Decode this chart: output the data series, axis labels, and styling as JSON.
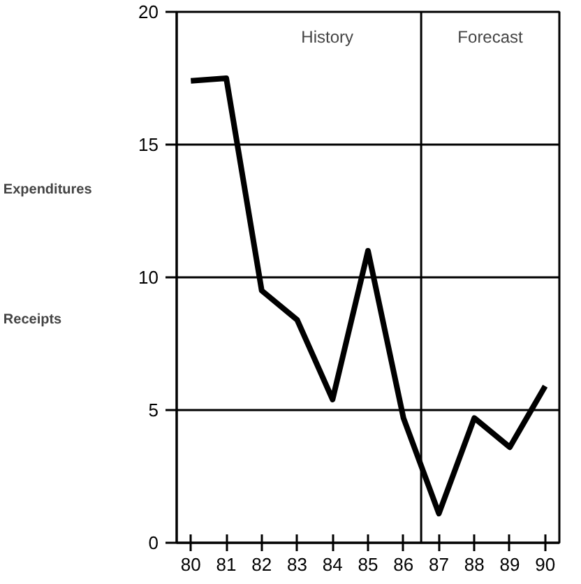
{
  "chart_data": {
    "type": "line",
    "x": [
      80,
      81,
      82,
      83,
      84,
      85,
      86,
      87,
      88,
      89,
      90
    ],
    "series": [
      {
        "color": "#000000",
        "values": [
          17.4,
          17.5,
          9.5,
          8.4,
          5.4,
          11.0,
          4.7,
          1.1,
          4.7,
          3.6,
          5.9
        ]
      }
    ],
    "xlim": [
      79.6,
      90.4
    ],
    "xticks": [
      80,
      81,
      82,
      83,
      84,
      85,
      86,
      87,
      88,
      89,
      90
    ],
    "ylim": [
      0,
      20
    ],
    "yticks": [
      0,
      5,
      10,
      15,
      20
    ],
    "grid": "y",
    "marker": "none",
    "line_style": "solid",
    "ref_lines": [
      {
        "axis": "x",
        "value": 86.5,
        "color": "#000000"
      }
    ],
    "annotations": [
      "History",
      "Forecast",
      "Expenditures",
      "Receipts"
    ]
  }
}
